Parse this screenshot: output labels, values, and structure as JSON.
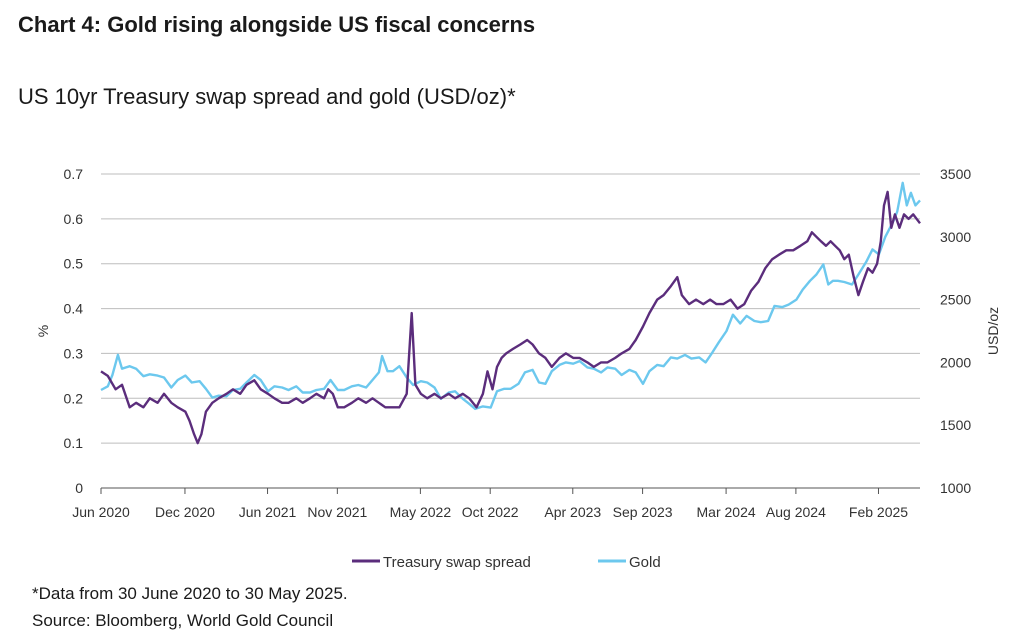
{
  "title": "Chart 4: Gold rising alongside US fiscal concerns",
  "footnote": "*Data from 30 June 2020 to 30 May 2025.",
  "source": "Source: Bloomberg, World Gold Council",
  "colors": {
    "spread": "#5b2d7c",
    "gold": "#6cc8ee",
    "grid": "#bdbdbd",
    "axis": "#555555"
  },
  "chart_data": {
    "type": "line",
    "title": "US 10yr Treasury swap spread and gold (USD/oz)*",
    "ylabel": "%",
    "y2label": "USD/oz",
    "ylim": [
      0,
      0.7
    ],
    "y2lim": [
      1000,
      3500
    ],
    "yticks": [
      "0",
      "0.1",
      "0.2",
      "0.3",
      "0.4",
      "0.5",
      "0.6",
      "0.7"
    ],
    "y2ticks": [
      "1000",
      "1500",
      "2000",
      "2500",
      "3000",
      "3500"
    ],
    "xlim": [
      "2020-06-30",
      "2025-05-30"
    ],
    "xticks": [
      {
        "label": "Jun 2020",
        "date": "2020-06-30"
      },
      {
        "label": "Dec 2020",
        "date": "2020-12-31"
      },
      {
        "label": "Jun 2021",
        "date": "2021-06-30"
      },
      {
        "label": "Nov 2021",
        "date": "2021-11-30"
      },
      {
        "label": "May 2022",
        "date": "2022-05-31"
      },
      {
        "label": "Oct 2022",
        "date": "2022-10-31"
      },
      {
        "label": "Apr 2023",
        "date": "2023-04-30"
      },
      {
        "label": "Sep 2023",
        "date": "2023-09-30"
      },
      {
        "label": "Mar 2024",
        "date": "2024-03-31"
      },
      {
        "label": "Aug 2024",
        "date": "2024-08-31"
      },
      {
        "label": "Feb 2025",
        "date": "2025-02-28"
      }
    ],
    "grid": true,
    "legend_position": "bottom-center",
    "series": [
      {
        "name": "Treasury swap spread",
        "axis": "left",
        "points": [
          [
            "2020-06-30",
            0.26
          ],
          [
            "2020-07-15",
            0.25
          ],
          [
            "2020-08-01",
            0.22
          ],
          [
            "2020-08-15",
            0.23
          ],
          [
            "2020-09-01",
            0.18
          ],
          [
            "2020-09-15",
            0.19
          ],
          [
            "2020-10-01",
            0.18
          ],
          [
            "2020-10-15",
            0.2
          ],
          [
            "2020-11-01",
            0.19
          ],
          [
            "2020-11-15",
            0.21
          ],
          [
            "2020-12-01",
            0.19
          ],
          [
            "2020-12-15",
            0.18
          ],
          [
            "2021-01-01",
            0.17
          ],
          [
            "2021-01-10",
            0.15
          ],
          [
            "2021-01-20",
            0.12
          ],
          [
            "2021-01-28",
            0.1
          ],
          [
            "2021-02-05",
            0.12
          ],
          [
            "2021-02-15",
            0.17
          ],
          [
            "2021-03-01",
            0.19
          ],
          [
            "2021-03-15",
            0.2
          ],
          [
            "2021-04-01",
            0.21
          ],
          [
            "2021-04-15",
            0.22
          ],
          [
            "2021-05-01",
            0.21
          ],
          [
            "2021-05-15",
            0.23
          ],
          [
            "2021-06-01",
            0.24
          ],
          [
            "2021-06-15",
            0.22
          ],
          [
            "2021-07-01",
            0.21
          ],
          [
            "2021-07-15",
            0.2
          ],
          [
            "2021-08-01",
            0.19
          ],
          [
            "2021-08-15",
            0.19
          ],
          [
            "2021-09-01",
            0.2
          ],
          [
            "2021-09-15",
            0.19
          ],
          [
            "2021-10-01",
            0.2
          ],
          [
            "2021-10-15",
            0.21
          ],
          [
            "2021-11-01",
            0.2
          ],
          [
            "2021-11-10",
            0.22
          ],
          [
            "2021-11-20",
            0.21
          ],
          [
            "2021-12-01",
            0.18
          ],
          [
            "2021-12-15",
            0.18
          ],
          [
            "2022-01-01",
            0.19
          ],
          [
            "2022-01-15",
            0.2
          ],
          [
            "2022-02-01",
            0.19
          ],
          [
            "2022-02-15",
            0.2
          ],
          [
            "2022-03-01",
            0.19
          ],
          [
            "2022-03-15",
            0.18
          ],
          [
            "2022-04-01",
            0.18
          ],
          [
            "2022-04-15",
            0.18
          ],
          [
            "2022-05-01",
            0.21
          ],
          [
            "2022-05-12",
            0.39
          ],
          [
            "2022-05-20",
            0.23
          ],
          [
            "2022-06-01",
            0.21
          ],
          [
            "2022-06-15",
            0.2
          ],
          [
            "2022-07-01",
            0.21
          ],
          [
            "2022-07-15",
            0.2
          ],
          [
            "2022-08-01",
            0.21
          ],
          [
            "2022-08-15",
            0.2
          ],
          [
            "2022-09-01",
            0.21
          ],
          [
            "2022-09-15",
            0.2
          ],
          [
            "2022-10-01",
            0.18
          ],
          [
            "2022-10-15",
            0.21
          ],
          [
            "2022-10-25",
            0.26
          ],
          [
            "2022-11-05",
            0.22
          ],
          [
            "2022-11-15",
            0.27
          ],
          [
            "2022-11-25",
            0.29
          ],
          [
            "2022-12-05",
            0.3
          ],
          [
            "2022-12-20",
            0.31
          ],
          [
            "2023-01-05",
            0.32
          ],
          [
            "2023-01-20",
            0.33
          ],
          [
            "2023-02-01",
            0.32
          ],
          [
            "2023-02-15",
            0.3
          ],
          [
            "2023-03-01",
            0.29
          ],
          [
            "2023-03-15",
            0.27
          ],
          [
            "2023-04-01",
            0.29
          ],
          [
            "2023-04-15",
            0.3
          ],
          [
            "2023-05-01",
            0.29
          ],
          [
            "2023-05-15",
            0.29
          ],
          [
            "2023-06-01",
            0.28
          ],
          [
            "2023-06-15",
            0.27
          ],
          [
            "2023-07-01",
            0.28
          ],
          [
            "2023-07-15",
            0.28
          ],
          [
            "2023-08-01",
            0.29
          ],
          [
            "2023-08-15",
            0.3
          ],
          [
            "2023-09-01",
            0.31
          ],
          [
            "2023-09-15",
            0.33
          ],
          [
            "2023-10-01",
            0.36
          ],
          [
            "2023-10-15",
            0.39
          ],
          [
            "2023-11-01",
            0.42
          ],
          [
            "2023-11-15",
            0.43
          ],
          [
            "2023-12-01",
            0.45
          ],
          [
            "2023-12-15",
            0.47
          ],
          [
            "2023-12-25",
            0.43
          ],
          [
            "2024-01-10",
            0.41
          ],
          [
            "2024-01-25",
            0.42
          ],
          [
            "2024-02-10",
            0.41
          ],
          [
            "2024-02-25",
            0.42
          ],
          [
            "2024-03-10",
            0.41
          ],
          [
            "2024-03-25",
            0.41
          ],
          [
            "2024-04-10",
            0.42
          ],
          [
            "2024-04-25",
            0.4
          ],
          [
            "2024-05-10",
            0.41
          ],
          [
            "2024-05-25",
            0.44
          ],
          [
            "2024-06-10",
            0.46
          ],
          [
            "2024-06-25",
            0.49
          ],
          [
            "2024-07-10",
            0.51
          ],
          [
            "2024-07-25",
            0.52
          ],
          [
            "2024-08-10",
            0.53
          ],
          [
            "2024-08-25",
            0.53
          ],
          [
            "2024-09-10",
            0.54
          ],
          [
            "2024-09-25",
            0.55
          ],
          [
            "2024-10-05",
            0.57
          ],
          [
            "2024-10-15",
            0.56
          ],
          [
            "2024-10-25",
            0.55
          ],
          [
            "2024-11-05",
            0.54
          ],
          [
            "2024-11-15",
            0.55
          ],
          [
            "2024-11-25",
            0.54
          ],
          [
            "2024-12-05",
            0.53
          ],
          [
            "2024-12-15",
            0.51
          ],
          [
            "2024-12-25",
            0.52
          ],
          [
            "2025-01-05",
            0.47
          ],
          [
            "2025-01-15",
            0.43
          ],
          [
            "2025-01-25",
            0.46
          ],
          [
            "2025-02-05",
            0.49
          ],
          [
            "2025-02-15",
            0.48
          ],
          [
            "2025-02-25",
            0.5
          ],
          [
            "2025-03-05",
            0.55
          ],
          [
            "2025-03-12",
            0.63
          ],
          [
            "2025-03-20",
            0.66
          ],
          [
            "2025-03-28",
            0.58
          ],
          [
            "2025-04-05",
            0.61
          ],
          [
            "2025-04-15",
            0.58
          ],
          [
            "2025-04-25",
            0.61
          ],
          [
            "2025-05-05",
            0.6
          ],
          [
            "2025-05-15",
            0.61
          ],
          [
            "2025-05-30",
            0.59
          ]
        ]
      },
      {
        "name": "Gold",
        "axis": "right",
        "points": [
          [
            "2020-06-30",
            1780
          ],
          [
            "2020-07-15",
            1810
          ],
          [
            "2020-07-25",
            1900
          ],
          [
            "2020-08-06",
            2060
          ],
          [
            "2020-08-15",
            1950
          ],
          [
            "2020-09-01",
            1970
          ],
          [
            "2020-09-15",
            1950
          ],
          [
            "2020-10-01",
            1890
          ],
          [
            "2020-10-15",
            1905
          ],
          [
            "2020-11-01",
            1895
          ],
          [
            "2020-11-15",
            1880
          ],
          [
            "2020-12-01",
            1800
          ],
          [
            "2020-12-15",
            1860
          ],
          [
            "2021-01-01",
            1895
          ],
          [
            "2021-01-15",
            1840
          ],
          [
            "2021-02-01",
            1850
          ],
          [
            "2021-02-15",
            1790
          ],
          [
            "2021-03-01",
            1720
          ],
          [
            "2021-03-15",
            1735
          ],
          [
            "2021-04-01",
            1730
          ],
          [
            "2021-04-15",
            1780
          ],
          [
            "2021-05-01",
            1790
          ],
          [
            "2021-05-15",
            1840
          ],
          [
            "2021-06-01",
            1900
          ],
          [
            "2021-06-15",
            1860
          ],
          [
            "2021-07-01",
            1770
          ],
          [
            "2021-07-15",
            1810
          ],
          [
            "2021-08-01",
            1800
          ],
          [
            "2021-08-15",
            1780
          ],
          [
            "2021-09-01",
            1810
          ],
          [
            "2021-09-15",
            1760
          ],
          [
            "2021-10-01",
            1760
          ],
          [
            "2021-10-15",
            1780
          ],
          [
            "2021-11-01",
            1790
          ],
          [
            "2021-11-15",
            1860
          ],
          [
            "2021-12-01",
            1780
          ],
          [
            "2021-12-15",
            1780
          ],
          [
            "2022-01-01",
            1810
          ],
          [
            "2022-01-15",
            1820
          ],
          [
            "2022-02-01",
            1800
          ],
          [
            "2022-02-15",
            1860
          ],
          [
            "2022-03-01",
            1920
          ],
          [
            "2022-03-08",
            2050
          ],
          [
            "2022-03-20",
            1930
          ],
          [
            "2022-04-01",
            1930
          ],
          [
            "2022-04-15",
            1970
          ],
          [
            "2022-05-01",
            1880
          ],
          [
            "2022-05-15",
            1820
          ],
          [
            "2022-06-01",
            1850
          ],
          [
            "2022-06-15",
            1840
          ],
          [
            "2022-07-01",
            1800
          ],
          [
            "2022-07-15",
            1710
          ],
          [
            "2022-08-01",
            1760
          ],
          [
            "2022-08-15",
            1770
          ],
          [
            "2022-09-01",
            1710
          ],
          [
            "2022-09-15",
            1670
          ],
          [
            "2022-09-28",
            1630
          ],
          [
            "2022-10-15",
            1650
          ],
          [
            "2022-11-01",
            1640
          ],
          [
            "2022-11-15",
            1770
          ],
          [
            "2022-12-01",
            1790
          ],
          [
            "2022-12-15",
            1790
          ],
          [
            "2023-01-01",
            1830
          ],
          [
            "2023-01-15",
            1920
          ],
          [
            "2023-02-01",
            1940
          ],
          [
            "2023-02-15",
            1840
          ],
          [
            "2023-03-01",
            1830
          ],
          [
            "2023-03-15",
            1930
          ],
          [
            "2023-04-01",
            1980
          ],
          [
            "2023-04-15",
            2000
          ],
          [
            "2023-05-01",
            1990
          ],
          [
            "2023-05-15",
            2010
          ],
          [
            "2023-06-01",
            1960
          ],
          [
            "2023-06-15",
            1950
          ],
          [
            "2023-07-01",
            1920
          ],
          [
            "2023-07-15",
            1960
          ],
          [
            "2023-08-01",
            1950
          ],
          [
            "2023-08-15",
            1900
          ],
          [
            "2023-09-01",
            1940
          ],
          [
            "2023-09-15",
            1920
          ],
          [
            "2023-10-01",
            1830
          ],
          [
            "2023-10-15",
            1930
          ],
          [
            "2023-11-01",
            1980
          ],
          [
            "2023-11-15",
            1970
          ],
          [
            "2023-12-01",
            2040
          ],
          [
            "2023-12-15",
            2030
          ],
          [
            "2024-01-01",
            2060
          ],
          [
            "2024-01-15",
            2030
          ],
          [
            "2024-02-01",
            2040
          ],
          [
            "2024-02-15",
            2000
          ],
          [
            "2024-03-01",
            2080
          ],
          [
            "2024-03-15",
            2160
          ],
          [
            "2024-04-01",
            2250
          ],
          [
            "2024-04-15",
            2380
          ],
          [
            "2024-05-01",
            2310
          ],
          [
            "2024-05-15",
            2370
          ],
          [
            "2024-06-01",
            2330
          ],
          [
            "2024-06-15",
            2320
          ],
          [
            "2024-07-01",
            2330
          ],
          [
            "2024-07-15",
            2450
          ],
          [
            "2024-08-01",
            2440
          ],
          [
            "2024-08-15",
            2460
          ],
          [
            "2024-09-01",
            2500
          ],
          [
            "2024-09-15",
            2580
          ],
          [
            "2024-10-01",
            2650
          ],
          [
            "2024-10-15",
            2700
          ],
          [
            "2024-10-30",
            2780
          ],
          [
            "2024-11-10",
            2620
          ],
          [
            "2024-11-20",
            2650
          ],
          [
            "2024-12-01",
            2650
          ],
          [
            "2024-12-15",
            2640
          ],
          [
            "2025-01-01",
            2620
          ],
          [
            "2025-01-15",
            2700
          ],
          [
            "2025-02-01",
            2800
          ],
          [
            "2025-02-15",
            2900
          ],
          [
            "2025-03-01",
            2860
          ],
          [
            "2025-03-15",
            3000
          ],
          [
            "2025-04-01",
            3120
          ],
          [
            "2025-04-10",
            3200
          ],
          [
            "2025-04-22",
            3430
          ],
          [
            "2025-05-01",
            3250
          ],
          [
            "2025-05-10",
            3350
          ],
          [
            "2025-05-20",
            3250
          ],
          [
            "2025-05-30",
            3290
          ]
        ]
      }
    ]
  }
}
